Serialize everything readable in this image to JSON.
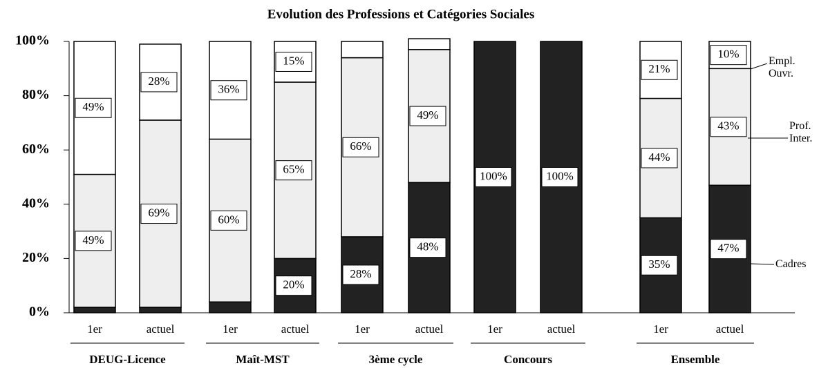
{
  "chart_data": {
    "type": "stacked_bar",
    "title": "Evolution des Professions et Catégories Sociales",
    "groups": [
      "DEUG-Licence",
      "Maît-MST",
      "3ème cycle",
      "Concours",
      "Ensemble"
    ],
    "categories": [
      "1er",
      "actuel",
      "1er",
      "actuel",
      "1er",
      "actuel",
      "1er",
      "actuel",
      "1er",
      "actuel"
    ],
    "series": [
      {
        "name": "Cadres",
        "color": "#222222",
        "values": [
          2,
          2,
          4,
          20,
          28,
          48,
          100,
          100,
          35,
          47
        ],
        "value_labels": [
          null,
          null,
          null,
          "20%",
          "28%",
          "48%",
          "100%",
          "100%",
          "35%",
          "47%"
        ]
      },
      {
        "name": "Prof. Inter.",
        "color": "#eeeeee",
        "values": [
          49,
          69,
          60,
          65,
          66,
          49,
          0,
          0,
          44,
          43
        ],
        "value_labels": [
          "49%",
          "69%",
          "60%",
          "65%",
          "66%",
          "49%",
          null,
          null,
          "44%",
          "43%"
        ]
      },
      {
        "name": "Empl. Ouvr.",
        "color": "#ffffff",
        "values": [
          49,
          28,
          36,
          15,
          6,
          4,
          0,
          0,
          21,
          10
        ],
        "value_labels": [
          "49%",
          "28%",
          "36%",
          "15%",
          null,
          null,
          null,
          null,
          "21%",
          "10%"
        ]
      }
    ],
    "ylim": [
      0,
      100
    ],
    "yticks": [
      {
        "value": 0,
        "label": "0%"
      },
      {
        "value": 20,
        "label": "20%"
      },
      {
        "value": 40,
        "label": "40%"
      },
      {
        "value": 60,
        "label": "60%"
      },
      {
        "value": 80,
        "label": "80%"
      },
      {
        "value": 100,
        "label": "100%"
      }
    ]
  }
}
